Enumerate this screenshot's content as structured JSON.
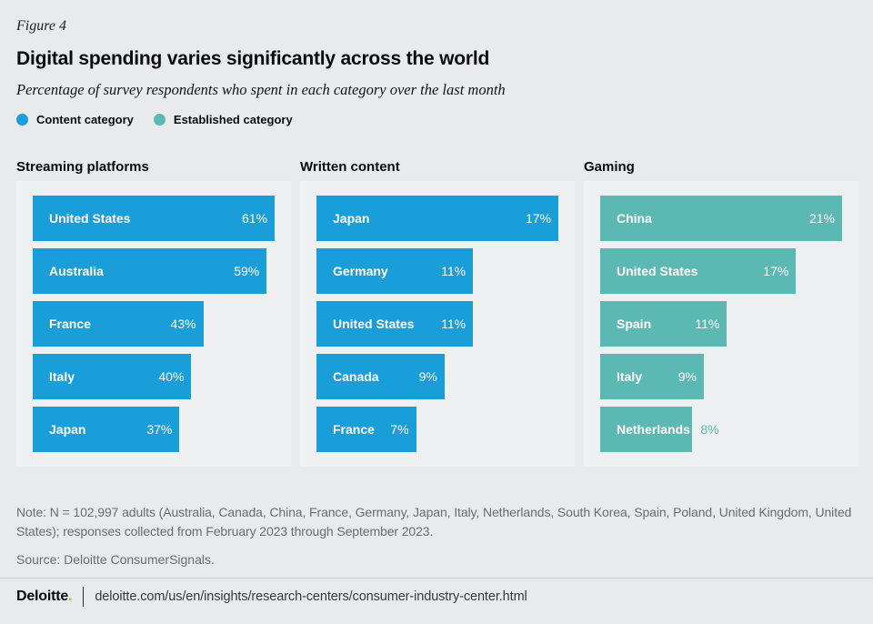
{
  "figure_label": "Figure 4",
  "title": "Digital spending varies significantly across the world",
  "subtitle": "Percentage of survey respondents who spent in each category over the last month",
  "legend": {
    "items": [
      {
        "label": "Content category",
        "color": "#1a9ed9"
      },
      {
        "label": "Established category",
        "color": "#5cb8b2"
      }
    ]
  },
  "colors": {
    "content_blue": "#1a9ed9",
    "established_teal": "#5cb8b2",
    "page_background": "#e8eaeb",
    "panel_background": "#eef0f1",
    "bar_text": "#ffffff",
    "note_gray": "#6b6e6f",
    "deloitte_green": "#86bc25"
  },
  "chart_data": [
    {
      "type": "bar",
      "orientation": "horizontal",
      "title": "Streaming platforms",
      "category_type": "Content category",
      "color": "#1a9ed9",
      "categories": [
        "United States",
        "Australia",
        "France",
        "Italy",
        "Japan"
      ],
      "values": [
        61,
        59,
        43,
        40,
        37
      ],
      "value_labels": [
        "61%",
        "59%",
        "43%",
        "40%",
        "37%"
      ],
      "value_label_positions": [
        "inside",
        "inside",
        "inside",
        "inside",
        "inside"
      ],
      "unit": "%",
      "xlim": [
        0,
        61
      ],
      "grid": false,
      "axis_ticks": "none"
    },
    {
      "type": "bar",
      "orientation": "horizontal",
      "title": "Written content",
      "category_type": "Content category",
      "color": "#1a9ed9",
      "categories": [
        "Japan",
        "Germany",
        "United States",
        "Canada",
        "France"
      ],
      "values": [
        17,
        11,
        11,
        9,
        7
      ],
      "value_labels": [
        "17%",
        "11%",
        "11%",
        "9%",
        "7%"
      ],
      "value_label_positions": [
        "inside",
        "inside",
        "inside",
        "inside",
        "inside"
      ],
      "unit": "%",
      "xlim": [
        0,
        17
      ],
      "grid": false,
      "axis_ticks": "none"
    },
    {
      "type": "bar",
      "orientation": "horizontal",
      "title": "Gaming",
      "category_type": "Established category",
      "color": "#5cb8b2",
      "categories": [
        "China",
        "United States",
        "Spain",
        "Italy",
        "Netherlands"
      ],
      "values": [
        21,
        17,
        11,
        9,
        8
      ],
      "value_labels": [
        "21%",
        "17%",
        "11%",
        "9%",
        "8%"
      ],
      "value_label_positions": [
        "inside",
        "inside",
        "inside",
        "inside",
        "outside"
      ],
      "unit": "%",
      "xlim": [
        0,
        21
      ],
      "grid": false,
      "axis_ticks": "none"
    }
  ],
  "note": "Note: N = 102,997 adults (Australia, Canada, China, France, Germany, Japan, Italy, Netherlands, South Korea, Spain, Poland, United Kingdom, United States); responses collected from February 2023 through September 2023.",
  "source": "Source: Deloitte ConsumerSignals.",
  "footer": {
    "logo": "Deloitte",
    "logo_dot": ".",
    "url": "deloitte.com/us/en/insights/research-centers/consumer-industry-center.html"
  }
}
